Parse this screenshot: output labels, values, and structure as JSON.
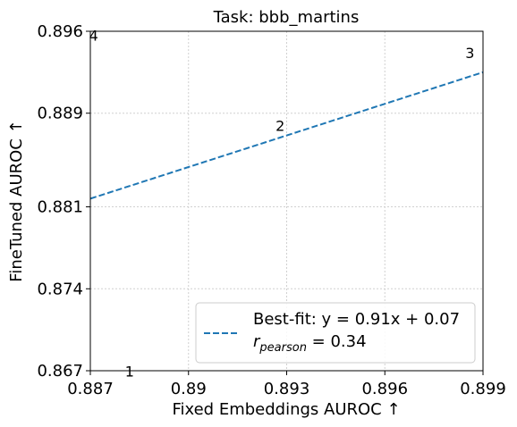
{
  "chart_data": {
    "type": "scatter",
    "title": "Task: bbb_martins",
    "xlabel": "Fixed Embeddings AUROC ↑",
    "ylabel": "FineTuned AUROC ↑",
    "xlim": [
      0.887,
      0.899
    ],
    "ylim": [
      0.867,
      0.896
    ],
    "xticks": [
      0.887,
      0.89,
      0.893,
      0.896,
      0.899
    ],
    "xtick_labels": [
      "0.887",
      "0.89",
      "0.893",
      "0.896",
      "0.899"
    ],
    "yticks": [
      0.867,
      0.874,
      0.881,
      0.889,
      0.896
    ],
    "ytick_labels": [
      "0.867",
      "0.874",
      "0.881",
      "0.889",
      "0.896"
    ],
    "grid": true,
    "points": [
      {
        "label": "1",
        "x": 0.8882,
        "y": 0.8665
      },
      {
        "label": "2",
        "x": 0.8928,
        "y": 0.8875
      },
      {
        "label": "3",
        "x": 0.8986,
        "y": 0.8937
      },
      {
        "label": "4",
        "x": 0.8871,
        "y": 0.8952
      }
    ],
    "fit_line": {
      "x": [
        0.887,
        0.899
      ],
      "y": [
        0.8817,
        0.8925
      ],
      "color": "#1f77b4",
      "style": "dashed"
    },
    "legend": {
      "placement": "lower-right",
      "line1": "Best-fit: y = 0.91x + 0.07",
      "line2_prefix": "r",
      "line2_subscript": "pearson",
      "line2_suffix": " = 0.34"
    }
  }
}
